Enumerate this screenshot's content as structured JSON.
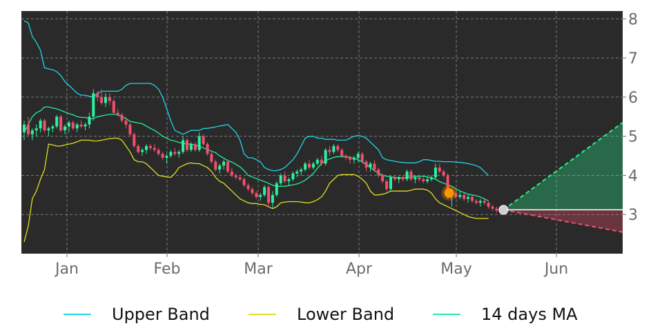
{
  "chart_data": {
    "type": "candlestick",
    "title": "",
    "xlabel": "",
    "ylabel": "",
    "ylim": [
      2.0,
      8.2
    ],
    "y_ticks": [
      3,
      4,
      5,
      6,
      7,
      8
    ],
    "y_tick_labels": [
      "3",
      "4",
      "5",
      "6",
      "7",
      "8"
    ],
    "x_ticks": [
      "Jan",
      "Feb",
      "Mar",
      "Apr",
      "May",
      "Jun"
    ],
    "x_tick_labels": [
      "Jan",
      "Feb",
      "Mar",
      "Apr",
      "May",
      "Jun"
    ],
    "y_axis_side": "right",
    "grid": true,
    "legend_position": "bottom",
    "colors": {
      "background": "#2a2a2a",
      "grid": "#7a7a7a",
      "up": "#2ef0a0",
      "down": "#f0506e",
      "upper_band": "#1fd6e8",
      "lower_band": "#e0e020",
      "ma": "#20f0a0",
      "marker_orange": "#ff9500",
      "marker_white": "#cfcfcf",
      "forecast_up": "#27f08c",
      "forecast_down": "#f0506e",
      "last_price_line": "#ffffff"
    },
    "candles": [
      [
        5.1,
        5.4,
        4.9,
        5.3
      ],
      [
        5.3,
        5.5,
        5.0,
        5.05
      ],
      [
        5.05,
        5.2,
        4.9,
        5.15
      ],
      [
        5.15,
        5.3,
        5.0,
        5.2
      ],
      [
        5.2,
        5.45,
        5.1,
        5.4
      ],
      [
        5.4,
        5.45,
        5.1,
        5.15
      ],
      [
        5.15,
        5.25,
        5.0,
        5.2
      ],
      [
        5.2,
        5.3,
        5.1,
        5.25
      ],
      [
        5.25,
        5.55,
        5.2,
        5.5
      ],
      [
        5.5,
        5.55,
        5.1,
        5.15
      ],
      [
        5.15,
        5.3,
        5.05,
        5.25
      ],
      [
        5.25,
        5.4,
        5.1,
        5.35
      ],
      [
        5.35,
        5.4,
        5.15,
        5.2
      ],
      [
        5.2,
        5.35,
        5.1,
        5.3
      ],
      [
        5.3,
        5.4,
        5.2,
        5.25
      ],
      [
        5.25,
        5.35,
        5.15,
        5.3
      ],
      [
        5.3,
        5.6,
        5.2,
        5.5
      ],
      [
        5.5,
        6.2,
        5.4,
        6.1
      ],
      [
        6.1,
        6.15,
        5.9,
        6.0
      ],
      [
        6.0,
        6.2,
        5.8,
        5.85
      ],
      [
        5.85,
        6.1,
        5.75,
        6.0
      ],
      [
        6.0,
        6.1,
        5.8,
        5.9
      ],
      [
        5.9,
        5.95,
        5.55,
        5.6
      ],
      [
        5.6,
        5.7,
        5.5,
        5.55
      ],
      [
        5.55,
        5.6,
        5.35,
        5.4
      ],
      [
        5.4,
        5.5,
        5.2,
        5.3
      ],
      [
        5.3,
        5.35,
        5.0,
        5.05
      ],
      [
        5.05,
        5.1,
        4.7,
        4.75
      ],
      [
        4.75,
        4.8,
        4.55,
        4.6
      ],
      [
        4.6,
        4.7,
        4.5,
        4.65
      ],
      [
        4.65,
        4.8,
        4.55,
        4.75
      ],
      [
        4.75,
        4.8,
        4.65,
        4.7
      ],
      [
        4.7,
        4.8,
        4.6,
        4.65
      ],
      [
        4.65,
        4.7,
        4.5,
        4.55
      ],
      [
        4.55,
        4.6,
        4.4,
        4.45
      ],
      [
        4.45,
        4.55,
        4.3,
        4.5
      ],
      [
        4.5,
        4.65,
        4.45,
        4.6
      ],
      [
        4.6,
        4.7,
        4.5,
        4.55
      ],
      [
        4.55,
        4.65,
        4.45,
        4.6
      ],
      [
        4.6,
        5.0,
        4.55,
        4.9
      ],
      [
        4.9,
        4.95,
        4.6,
        4.65
      ],
      [
        4.65,
        4.85,
        4.6,
        4.8
      ],
      [
        4.8,
        4.85,
        4.6,
        4.65
      ],
      [
        4.65,
        5.1,
        4.6,
        5.0
      ],
      [
        5.0,
        5.05,
        4.75,
        4.8
      ],
      [
        4.8,
        4.85,
        4.5,
        4.55
      ],
      [
        4.55,
        4.6,
        4.3,
        4.35
      ],
      [
        4.35,
        4.4,
        4.1,
        4.15
      ],
      [
        4.15,
        4.3,
        4.05,
        4.25
      ],
      [
        4.25,
        4.4,
        4.15,
        4.35
      ],
      [
        4.35,
        4.4,
        4.05,
        4.1
      ],
      [
        4.1,
        4.2,
        3.95,
        4.0
      ],
      [
        4.0,
        4.05,
        3.9,
        3.95
      ],
      [
        3.95,
        4.0,
        3.85,
        3.9
      ],
      [
        3.9,
        3.95,
        3.7,
        3.75
      ],
      [
        3.75,
        3.8,
        3.6,
        3.65
      ],
      [
        3.65,
        3.7,
        3.5,
        3.55
      ],
      [
        3.55,
        3.6,
        3.4,
        3.45
      ],
      [
        3.45,
        3.55,
        3.35,
        3.5
      ],
      [
        3.5,
        3.75,
        3.45,
        3.7
      ],
      [
        3.7,
        3.75,
        3.2,
        3.3
      ],
      [
        3.3,
        3.6,
        3.15,
        3.5
      ],
      [
        3.5,
        3.85,
        3.45,
        3.8
      ],
      [
        3.8,
        4.05,
        3.75,
        4.0
      ],
      [
        4.0,
        4.1,
        3.8,
        3.85
      ],
      [
        3.85,
        3.95,
        3.75,
        3.9
      ],
      [
        3.9,
        4.1,
        3.85,
        4.05
      ],
      [
        4.05,
        4.15,
        3.95,
        4.1
      ],
      [
        4.1,
        4.2,
        4.0,
        4.15
      ],
      [
        4.15,
        4.35,
        4.1,
        4.3
      ],
      [
        4.3,
        4.4,
        4.15,
        4.2
      ],
      [
        4.2,
        4.35,
        4.15,
        4.3
      ],
      [
        4.3,
        4.45,
        4.25,
        4.4
      ],
      [
        4.4,
        4.5,
        4.25,
        4.3
      ],
      [
        4.3,
        4.7,
        4.25,
        4.65
      ],
      [
        4.65,
        4.75,
        4.5,
        4.6
      ],
      [
        4.6,
        4.8,
        4.55,
        4.75
      ],
      [
        4.75,
        4.8,
        4.6,
        4.65
      ],
      [
        4.65,
        4.7,
        4.45,
        4.5
      ],
      [
        4.5,
        4.55,
        4.4,
        4.45
      ],
      [
        4.45,
        4.5,
        4.3,
        4.4
      ],
      [
        4.4,
        4.5,
        4.3,
        4.45
      ],
      [
        4.45,
        4.6,
        4.35,
        4.55
      ],
      [
        4.55,
        4.6,
        4.3,
        4.35
      ],
      [
        4.35,
        4.4,
        4.1,
        4.2
      ],
      [
        4.2,
        4.35,
        4.1,
        4.3
      ],
      [
        4.3,
        4.4,
        4.1,
        4.15
      ],
      [
        4.15,
        4.2,
        3.95,
        4.0
      ],
      [
        4.0,
        4.05,
        3.8,
        3.85
      ],
      [
        3.85,
        3.9,
        3.6,
        3.65
      ],
      [
        3.65,
        4.0,
        3.6,
        3.95
      ],
      [
        3.95,
        4.0,
        3.85,
        3.9
      ],
      [
        3.9,
        4.0,
        3.8,
        3.95
      ],
      [
        3.95,
        4.0,
        3.85,
        3.9
      ],
      [
        3.9,
        4.15,
        3.85,
        4.1
      ],
      [
        4.1,
        4.15,
        3.85,
        3.9
      ],
      [
        3.9,
        4.0,
        3.8,
        3.95
      ],
      [
        3.95,
        4.0,
        3.85,
        3.9
      ],
      [
        3.9,
        4.0,
        3.8,
        3.85
      ],
      [
        3.85,
        3.95,
        3.8,
        3.9
      ],
      [
        3.9,
        4.0,
        3.85,
        3.95
      ],
      [
        3.95,
        4.3,
        3.9,
        4.2
      ],
      [
        4.2,
        4.3,
        4.05,
        4.1
      ],
      [
        4.1,
        4.15,
        3.95,
        4.0
      ],
      [
        4.0,
        4.05,
        3.4,
        3.5
      ],
      [
        3.5,
        3.6,
        3.2,
        3.55
      ],
      [
        3.55,
        3.6,
        3.4,
        3.45
      ],
      [
        3.45,
        3.6,
        3.4,
        3.5
      ],
      [
        3.5,
        3.55,
        3.35,
        3.4
      ],
      [
        3.4,
        3.5,
        3.3,
        3.45
      ],
      [
        3.45,
        3.5,
        3.3,
        3.35
      ],
      [
        3.35,
        3.4,
        3.25,
        3.3
      ],
      [
        3.3,
        3.4,
        3.2,
        3.35
      ],
      [
        3.35,
        3.4,
        3.25,
        3.3
      ],
      [
        3.3,
        3.35,
        3.15,
        3.2
      ],
      [
        3.2,
        3.25,
        3.1,
        3.15
      ],
      [
        3.15,
        3.2,
        3.05,
        3.1
      ]
    ],
    "series": [
      {
        "name": "Upper Band",
        "values": [
          7.95,
          7.9,
          7.55,
          7.4,
          7.2,
          6.75,
          6.72,
          6.7,
          6.65,
          6.55,
          6.4,
          6.3,
          6.2,
          6.1,
          6.05,
          6.05,
          6.02,
          6.0,
          6.1,
          6.15,
          6.15,
          6.15,
          6.15,
          6.15,
          6.2,
          6.3,
          6.35,
          6.35,
          6.35,
          6.35,
          6.35,
          6.35,
          6.3,
          6.2,
          6.0,
          5.7,
          5.4,
          5.15,
          5.1,
          5.05,
          5.1,
          5.15,
          5.15,
          5.15,
          5.2,
          5.2,
          5.22,
          5.24,
          5.26,
          5.28,
          5.3,
          5.2,
          5.1,
          4.9,
          4.55,
          4.45,
          4.45,
          4.4,
          4.35,
          4.2,
          4.15,
          4.12,
          4.12,
          4.15,
          4.2,
          4.3,
          4.4,
          4.55,
          4.75,
          4.95,
          5.0,
          5.0,
          4.95,
          4.95,
          4.92,
          4.92,
          4.92,
          4.9,
          4.9,
          4.9,
          4.95,
          5.0,
          5.02,
          5.0,
          4.95,
          4.85,
          4.75,
          4.65,
          4.45,
          4.4,
          4.38,
          4.36,
          4.34,
          4.33,
          4.32,
          4.32,
          4.32,
          4.35,
          4.4,
          4.4,
          4.38,
          4.36,
          4.36,
          4.35,
          4.35,
          4.35,
          4.34,
          4.33,
          4.32,
          4.3,
          4.28,
          4.25,
          4.2,
          4.1,
          4.0
        ]
      },
      {
        "name": "Lower Band",
        "values": [
          2.3,
          2.7,
          3.4,
          3.6,
          3.9,
          4.15,
          4.8,
          4.78,
          4.75,
          4.75,
          4.78,
          4.8,
          4.82,
          4.86,
          4.9,
          4.9,
          4.9,
          4.88,
          4.88,
          4.9,
          4.92,
          4.94,
          4.95,
          4.95,
          4.9,
          4.75,
          4.6,
          4.4,
          4.35,
          4.35,
          4.3,
          4.2,
          4.1,
          4.0,
          3.98,
          3.96,
          3.95,
          4.05,
          4.2,
          4.25,
          4.3,
          4.32,
          4.3,
          4.3,
          4.25,
          4.2,
          4.1,
          3.95,
          3.85,
          3.8,
          3.7,
          3.6,
          3.5,
          3.4,
          3.35,
          3.3,
          3.28,
          3.28,
          3.26,
          3.25,
          3.2,
          3.15,
          3.2,
          3.3,
          3.32,
          3.33,
          3.33,
          3.33,
          3.32,
          3.3,
          3.3,
          3.33,
          3.38,
          3.45,
          3.6,
          3.8,
          3.9,
          4.0,
          4.02,
          4.02,
          4.02,
          4.02,
          3.98,
          3.9,
          3.8,
          3.6,
          3.5,
          3.5,
          3.52,
          3.55,
          3.6,
          3.6,
          3.6,
          3.6,
          3.6,
          3.62,
          3.65,
          3.65,
          3.65,
          3.62,
          3.55,
          3.4,
          3.3,
          3.25,
          3.2,
          3.15,
          3.1,
          3.05,
          3.0,
          2.95,
          2.92,
          2.9,
          2.9,
          2.9,
          2.9
        ]
      },
      {
        "name": "14 days MA",
        "values": [
          5.1,
          5.3,
          5.5,
          5.6,
          5.65,
          5.75,
          5.75,
          5.72,
          5.7,
          5.66,
          5.62,
          5.58,
          5.55,
          5.5,
          5.48,
          5.48,
          5.45,
          5.45,
          5.5,
          5.52,
          5.54,
          5.56,
          5.56,
          5.55,
          5.5,
          5.45,
          5.38,
          5.36,
          5.34,
          5.32,
          5.26,
          5.2,
          5.15,
          5.08,
          5.0,
          4.95,
          4.9,
          4.88,
          4.84,
          4.82,
          4.8,
          4.8,
          4.78,
          4.74,
          4.7,
          4.66,
          4.62,
          4.58,
          4.5,
          4.44,
          4.38,
          4.34,
          4.28,
          4.22,
          4.12,
          4.0,
          3.96,
          3.92,
          3.88,
          3.84,
          3.8,
          3.75,
          3.72,
          3.72,
          3.72,
          3.74,
          3.76,
          3.78,
          3.82,
          3.88,
          3.96,
          4.05,
          4.18,
          4.3,
          4.38,
          4.42,
          4.46,
          4.48,
          4.48,
          4.48,
          4.46,
          4.44,
          4.4,
          4.34,
          4.28,
          4.2,
          4.12,
          4.06,
          4.0,
          3.98,
          3.96,
          3.95,
          3.94,
          3.94,
          3.95,
          3.96,
          3.98,
          3.98,
          3.98,
          3.96,
          3.94,
          3.9,
          3.84,
          3.8,
          3.76,
          3.72,
          3.66,
          3.6,
          3.56,
          3.52,
          3.5,
          3.48,
          3.45,
          3.4,
          3.35
        ]
      }
    ],
    "last_price": 3.12,
    "forecast_up": [
      3.12,
      5.35
    ],
    "forecast_down": [
      3.12,
      2.55
    ],
    "signal_marker_value": 3.55
  },
  "legend": [
    {
      "label": "Upper Band",
      "color": "#1fd6e8"
    },
    {
      "label": "Lower Band",
      "color": "#e0e020"
    },
    {
      "label": "14 days MA",
      "color": "#20f0a0"
    }
  ]
}
